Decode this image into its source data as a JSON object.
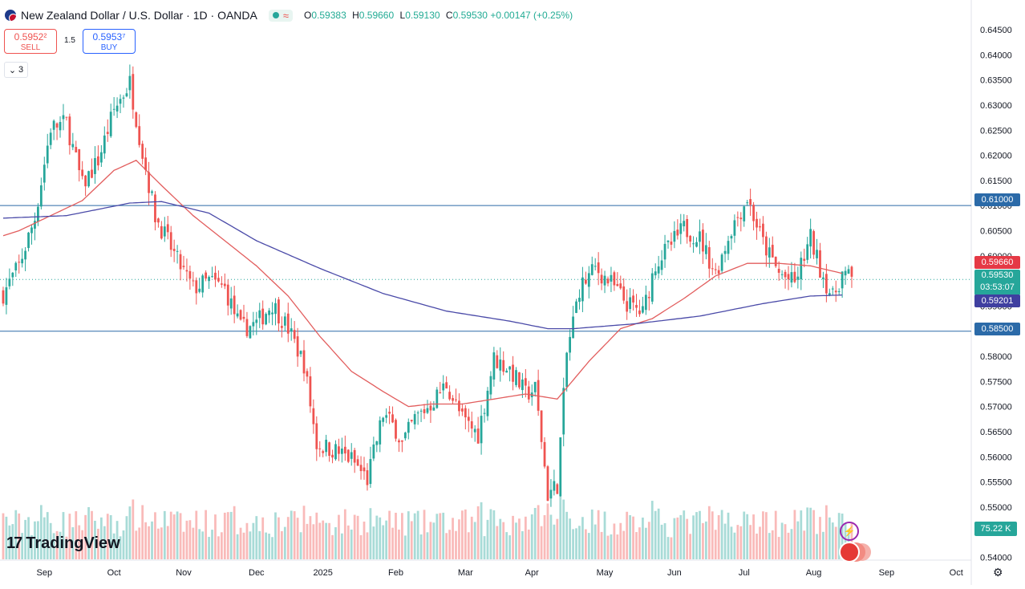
{
  "header": {
    "title": "New Zealand Dollar / U.S. Dollar · 1D · OANDA",
    "open_label": "O",
    "open": "0.59383",
    "high_label": "H",
    "high": "0.59660",
    "low_label": "L",
    "low": "0.59130",
    "close_label": "C",
    "close": "0.59530",
    "change": "+0.00147 (+0.25%)",
    "wave_glyph": "≈"
  },
  "trade": {
    "sell_price": "0.5952²",
    "sell_label": "SELL",
    "spread": "1.5",
    "buy_price": "0.5953⁷",
    "buy_label": "BUY"
  },
  "indicators_toggle": {
    "chevron": "⌄",
    "count": "3"
  },
  "branding": {
    "logo_mark": "17",
    "name": "TradingView"
  },
  "icons": [
    "flag-nzd-usd-icon",
    "market-open-dot-icon",
    "wave-icon",
    "chevron-down-icon",
    "tradingview-logo-icon",
    "lightning-icon",
    "flags-icon",
    "gear-icon"
  ],
  "colors": {
    "up": "#26a69a",
    "down": "#ef5350",
    "ma50": "#e25d5d",
    "ma200": "#4a4aa8",
    "hline": "#2b6aa8"
  },
  "labels": {
    "high_level": "0.61000",
    "ma50_value": "0.59660",
    "price": "0.59530",
    "countdown": "03:53:07",
    "ma200_value": "0.59201",
    "low_level": "0.58500",
    "volume": "75.22 K"
  },
  "chart_data": {
    "type": "candlestick",
    "y_ticks": [
      "0.64500",
      "0.64000",
      "0.63500",
      "0.63000",
      "0.62500",
      "0.62000",
      "0.61500",
      "0.61000",
      "0.60500",
      "0.60000",
      "0.59500",
      "0.59000",
      "0.58500",
      "0.58000",
      "0.57500",
      "0.57000",
      "0.56500",
      "0.56000",
      "0.55500",
      "0.55000",
      "0.54500",
      "0.54000"
    ],
    "ylim": [
      0.5396,
      0.6466
    ],
    "x_labels": [
      "Sep",
      "Oct",
      "Nov",
      "Dec",
      "2025",
      "Feb",
      "Mar",
      "Apr",
      "May",
      "Jun",
      "Jul",
      "Aug",
      "Sep",
      "Oct"
    ],
    "x_label_bars": [
      13,
      35,
      57,
      80,
      101,
      124,
      146,
      167,
      190,
      212,
      234,
      256,
      279,
      301
    ],
    "total_slots": 306,
    "horizontal_lines": [
      0.61,
      0.585
    ],
    "current_price": 0.5953,
    "moving_averages": [
      {
        "period": 50,
        "anchors": [
          [
            0,
            0.604
          ],
          [
            5,
            0.605
          ],
          [
            15,
            0.608
          ],
          [
            25,
            0.611
          ],
          [
            35,
            0.617
          ],
          [
            42,
            0.619
          ],
          [
            50,
            0.614
          ],
          [
            60,
            0.608
          ],
          [
            70,
            0.603
          ],
          [
            80,
            0.598
          ],
          [
            90,
            0.592
          ],
          [
            100,
            0.584
          ],
          [
            110,
            0.577
          ],
          [
            120,
            0.573
          ],
          [
            128,
            0.57
          ],
          [
            135,
            0.5705
          ],
          [
            145,
            0.5705
          ],
          [
            155,
            0.5715
          ],
          [
            165,
            0.5725
          ],
          [
            175,
            0.5715
          ],
          [
            185,
            0.579
          ],
          [
            195,
            0.5855
          ],
          [
            205,
            0.5875
          ],
          [
            215,
            0.5915
          ],
          [
            225,
            0.596
          ],
          [
            235,
            0.5985
          ],
          [
            245,
            0.5985
          ],
          [
            255,
            0.598
          ],
          [
            265,
            0.5965
          ]
        ]
      },
      {
        "period": 200,
        "anchors": [
          [
            0,
            0.6075
          ],
          [
            20,
            0.608
          ],
          [
            40,
            0.6105
          ],
          [
            50,
            0.6108
          ],
          [
            65,
            0.6085
          ],
          [
            80,
            0.603
          ],
          [
            100,
            0.5975
          ],
          [
            120,
            0.5925
          ],
          [
            140,
            0.589
          ],
          [
            160,
            0.587
          ],
          [
            172,
            0.5855
          ],
          [
            180,
            0.5855
          ],
          [
            200,
            0.5865
          ],
          [
            220,
            0.588
          ],
          [
            240,
            0.5905
          ],
          [
            255,
            0.592
          ],
          [
            265,
            0.5922
          ]
        ]
      }
    ],
    "price_anchors": [
      [
        0,
        0.5925
      ],
      [
        5,
        0.598
      ],
      [
        10,
        0.6075
      ],
      [
        15,
        0.6255
      ],
      [
        20,
        0.6265
      ],
      [
        25,
        0.614
      ],
      [
        30,
        0.619
      ],
      [
        35,
        0.629
      ],
      [
        40,
        0.6345
      ],
      [
        44,
        0.6205
      ],
      [
        48,
        0.608
      ],
      [
        55,
        0.599
      ],
      [
        60,
        0.5935
      ],
      [
        65,
        0.595
      ],
      [
        70,
        0.5935
      ],
      [
        75,
        0.5855
      ],
      [
        80,
        0.5865
      ],
      [
        85,
        0.5905
      ],
      [
        90,
        0.5855
      ],
      [
        95,
        0.5785
      ],
      [
        99,
        0.5625
      ],
      [
        104,
        0.5615
      ],
      [
        110,
        0.5595
      ],
      [
        115,
        0.5555
      ],
      [
        120,
        0.5685
      ],
      [
        124,
        0.5655
      ],
      [
        126,
        0.5625
      ],
      [
        130,
        0.5675
      ],
      [
        135,
        0.5705
      ],
      [
        140,
        0.5745
      ],
      [
        145,
        0.5675
      ],
      [
        150,
        0.5645
      ],
      [
        155,
        0.5795
      ],
      [
        160,
        0.5775
      ],
      [
        165,
        0.5725
      ],
      [
        168,
        0.5735
      ],
      [
        170,
        0.5635
      ],
      [
        172,
        0.5525
      ],
      [
        175,
        0.5545
      ],
      [
        178,
        0.5805
      ],
      [
        182,
        0.5935
      ],
      [
        187,
        0.5975
      ],
      [
        192,
        0.5945
      ],
      [
        197,
        0.5905
      ],
      [
        202,
        0.5885
      ],
      [
        206,
        0.5985
      ],
      [
        210,
        0.6015
      ],
      [
        215,
        0.6055
      ],
      [
        220,
        0.6035
      ],
      [
        225,
        0.5965
      ],
      [
        230,
        0.6055
      ],
      [
        235,
        0.6115
      ],
      [
        240,
        0.6025
      ],
      [
        245,
        0.5965
      ],
      [
        250,
        0.5945
      ],
      [
        255,
        0.6035
      ],
      [
        258,
        0.5975
      ],
      [
        262,
        0.5915
      ],
      [
        265,
        0.5965
      ],
      [
        268,
        0.5953
      ]
    ],
    "volume_max": 150
  }
}
